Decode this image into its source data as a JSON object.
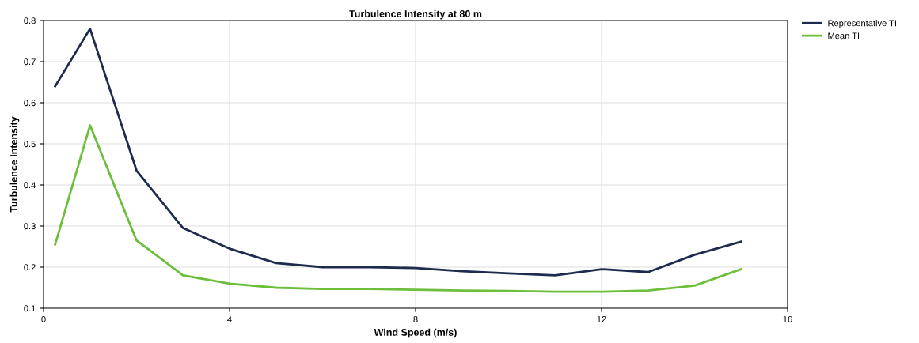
{
  "chart_data": {
    "type": "line",
    "title": "Turbulence Intensity at 80 m",
    "xlabel": "Wind Speed (m/s)",
    "ylabel": "Turbulence Intensity",
    "x": [
      0.25,
      1,
      2,
      3,
      4,
      5,
      6,
      7,
      8,
      9,
      10,
      11,
      12,
      13,
      14,
      15
    ],
    "series": [
      {
        "name": "Representative TI",
        "color": "#1f2a4f",
        "values": [
          0.64,
          0.78,
          0.435,
          0.295,
          0.245,
          0.21,
          0.2,
          0.2,
          0.198,
          0.19,
          0.185,
          0.18,
          0.195,
          0.188,
          0.23,
          0.262
        ]
      },
      {
        "name": "Mean TI",
        "color": "#6cbf3a",
        "values": [
          0.255,
          0.545,
          0.265,
          0.18,
          0.16,
          0.15,
          0.147,
          0.147,
          0.145,
          0.143,
          0.142,
          0.14,
          0.14,
          0.143,
          0.155,
          0.195
        ]
      }
    ],
    "xlim": [
      0,
      16
    ],
    "xticks": [
      0,
      4,
      8,
      12,
      16
    ],
    "ylim": [
      0.1,
      0.8
    ],
    "yticks": [
      0.1,
      0.2,
      0.3,
      0.4,
      0.5,
      0.6,
      0.7,
      0.8
    ],
    "grid": true,
    "legend": "top right",
    "marker": "none",
    "line_style": "solid"
  }
}
